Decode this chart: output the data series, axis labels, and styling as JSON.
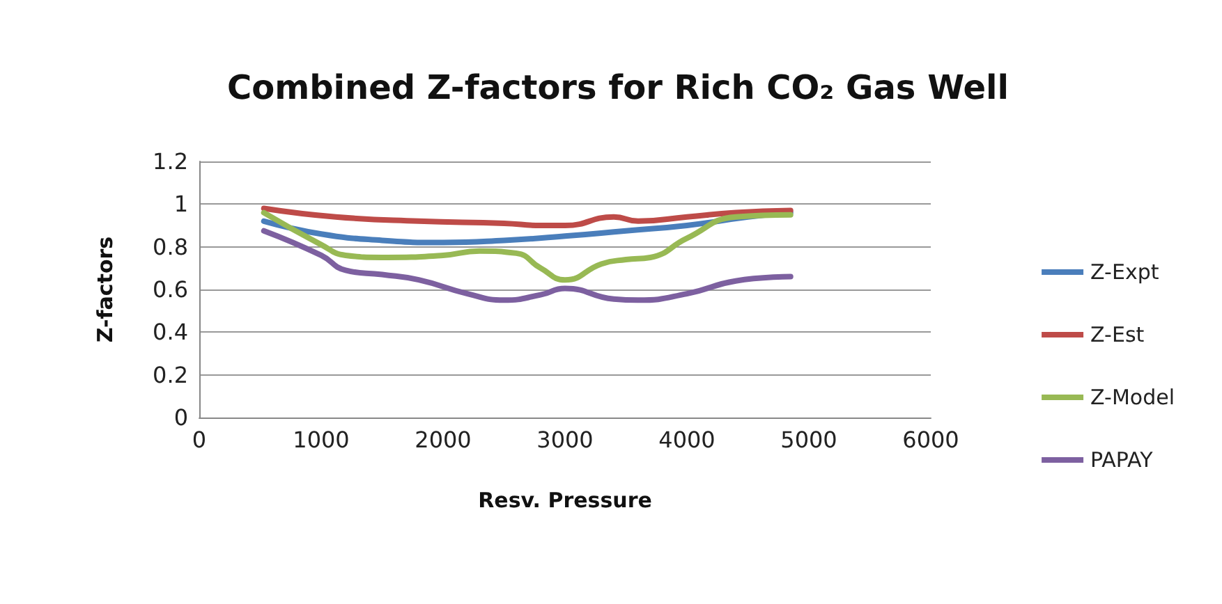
{
  "chart_data": {
    "type": "line",
    "title": "Combined Z-factors for Rich CO₂ Gas Well",
    "xlabel": "Resv. Pressure",
    "ylabel": "Z-factors",
    "xlim": [
      0,
      6000
    ],
    "xticks": [
      0,
      1000,
      2000,
      3000,
      4000,
      5000,
      6000
    ],
    "ylim": [
      0,
      1.2
    ],
    "yticks": [
      0,
      0.2,
      0.4,
      0.6,
      0.8,
      1,
      1.2
    ],
    "grid": "y",
    "legend": "right",
    "marker": "none",
    "line_style": "solid",
    "series": [
      {
        "name": "Z-Expt",
        "color": "#4a7ebb",
        "x": [
          530,
          1000,
          1500,
          2000,
          2500,
          3000,
          3500,
          4000,
          4500,
          4850
        ],
        "values": [
          0.92,
          0.86,
          0.83,
          0.82,
          0.83,
          0.85,
          0.875,
          0.9,
          0.94,
          0.96
        ]
      },
      {
        "name": "Z-Est",
        "color": "#be4b48",
        "x": [
          530,
          1120,
          1800,
          2500,
          2800,
          3000,
          3400,
          3600,
          4000,
          4400,
          4850
        ],
        "values": [
          0.98,
          0.94,
          0.92,
          0.91,
          0.9,
          0.9,
          0.94,
          0.92,
          0.94,
          0.96,
          0.97
        ]
      },
      {
        "name": "Z-Model",
        "color": "#98b954",
        "x": [
          530,
          1000,
          1200,
          1500,
          2000,
          2300,
          2600,
          2800,
          3000,
          3300,
          3500,
          3700,
          4000,
          4400,
          4850
        ],
        "values": [
          0.96,
          0.81,
          0.76,
          0.75,
          0.76,
          0.78,
          0.77,
          0.7,
          0.645,
          0.72,
          0.74,
          0.75,
          0.84,
          0.94,
          0.95
        ]
      },
      {
        "name": "PAPAY",
        "color": "#7d60a0",
        "x": [
          530,
          1000,
          1200,
          1500,
          1800,
          2200,
          2500,
          2800,
          3000,
          3400,
          3600,
          4000,
          4400,
          4850
        ],
        "values": [
          0.875,
          0.76,
          0.69,
          0.67,
          0.645,
          0.58,
          0.55,
          0.575,
          0.605,
          0.555,
          0.55,
          0.58,
          0.64,
          0.66
        ]
      }
    ]
  }
}
